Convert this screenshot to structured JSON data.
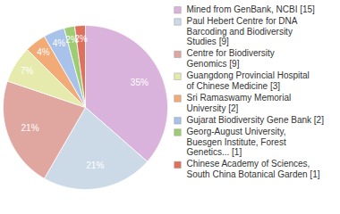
{
  "chart_data": {
    "type": "pie",
    "categories": [
      "Mined from GenBank, NCBI [15]",
      "Paul Hebert Centre for DNA\nBarcoding and Biodiversity\nStudies [9]",
      "Centre for Biodiversity\nGenomics [9]",
      "Guangdong Provincial Hospital\nof Chinese Medicine [3]",
      "Sri Ramaswamy Memorial\nUniversity [2]",
      "Gujarat Biodiversity Gene Bank [2]",
      "Georg-August University,\nBuesgen Institute, Forest\nGenetics... [1]",
      "Chinese Academy of Sciences,\nSouth China Botanical Garden [1]"
    ],
    "values": [
      35,
      21,
      21,
      7,
      4,
      4,
      2,
      2
    ],
    "value_labels": [
      "35%",
      "21%",
      "21%",
      "7%",
      "4%",
      "4%",
      "2%",
      "2%"
    ],
    "colors": [
      "#d9b3dc",
      "#ccdae8",
      "#e0a6a0",
      "#e6ebad",
      "#f2aa76",
      "#a9c2ea",
      "#9dcc73",
      "#e0705e"
    ],
    "data_labels": true,
    "legend": "right"
  }
}
